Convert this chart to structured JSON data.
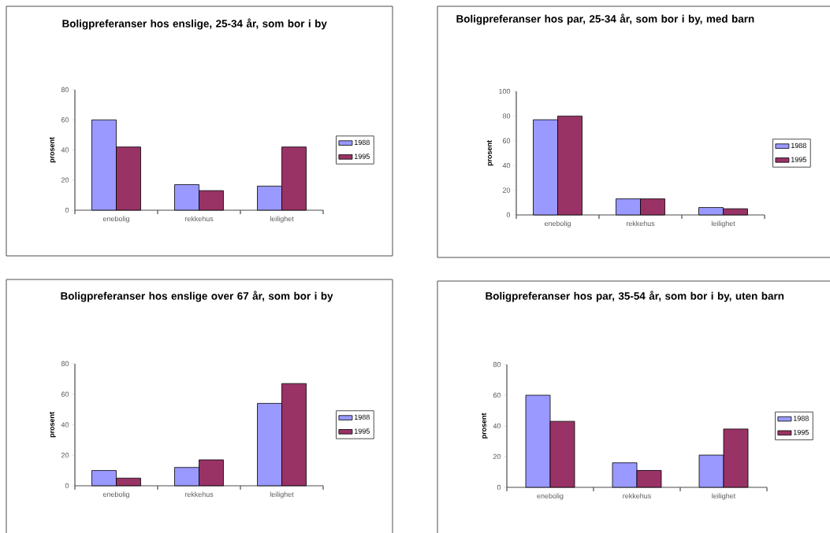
{
  "chart_data": [
    {
      "type": "bar",
      "title": "Boligpreferanser hos enslige, 25-34 år, som bor i by",
      "ylabel": "prosent",
      "categories": [
        "enebolig",
        "rekkehus",
        "leilighet"
      ],
      "series": [
        {
          "name": "1988",
          "color": "#9999ff",
          "values": [
            60,
            17,
            16
          ]
        },
        {
          "name": "1995",
          "color": "#993366",
          "values": [
            42,
            13,
            42
          ]
        }
      ],
      "ylim": [
        0,
        80
      ],
      "yticks": [
        0,
        20,
        40,
        60,
        80
      ],
      "legend": "right"
    },
    {
      "type": "bar",
      "title": "Boligpreferanser hos par, 25-34 år, som bor i by, med barn",
      "ylabel": "prosent",
      "categories": [
        "enebolig",
        "rekkehus",
        "leilighet"
      ],
      "series": [
        {
          "name": "1988",
          "color": "#9999ff",
          "values": [
            77,
            13,
            6
          ]
        },
        {
          "name": "1995",
          "color": "#993366",
          "values": [
            80,
            13,
            5
          ]
        }
      ],
      "ylim": [
        0,
        100
      ],
      "yticks": [
        0,
        20,
        40,
        60,
        80,
        100
      ],
      "legend": "right"
    },
    {
      "type": "bar",
      "title": "Boligpreferanser hos enslige over 67 år, som bor i by",
      "ylabel": "prosent",
      "categories": [
        "enebolig",
        "rekkehus",
        "leilighet"
      ],
      "series": [
        {
          "name": "1988",
          "color": "#9999ff",
          "values": [
            10,
            12,
            54
          ]
        },
        {
          "name": "1995",
          "color": "#993366",
          "values": [
            5,
            17,
            67
          ]
        }
      ],
      "ylim": [
        0,
        80
      ],
      "yticks": [
        0,
        20,
        40,
        60,
        80
      ],
      "legend": "right"
    },
    {
      "type": "bar",
      "title": "Boligpreferanser hos par, 35-54 år, som bor i by, uten barn",
      "ylabel": "prosent",
      "categories": [
        "enebolig",
        "rekkehus",
        "leilighet"
      ],
      "series": [
        {
          "name": "1988",
          "color": "#9999ff",
          "values": [
            60,
            16,
            21
          ]
        },
        {
          "name": "1995",
          "color": "#993366",
          "values": [
            43,
            11,
            38
          ]
        }
      ],
      "ylim": [
        0,
        80
      ],
      "yticks": [
        0,
        20,
        40,
        60,
        80
      ],
      "legend": "right"
    }
  ]
}
